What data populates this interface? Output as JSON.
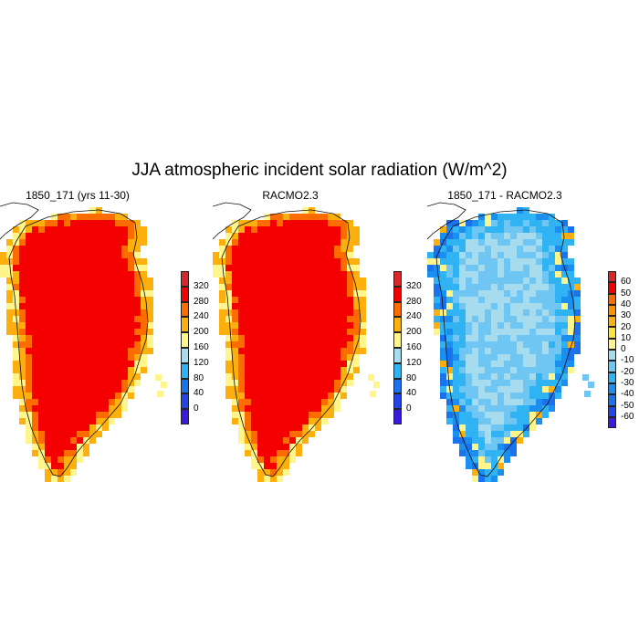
{
  "title": "JJA atmospheric incident solar radiation (W/m^2)",
  "panels": [
    {
      "title": "1850_171 (yrs 11-30)",
      "field": "model",
      "colorbar": {
        "labels": [
          "320",
          "280",
          "240",
          "200",
          "160",
          "120",
          "80",
          "40",
          "0"
        ],
        "colors": [
          "#d8262a",
          "#f40000",
          "#fd6c00",
          "#fdb00d",
          "#fef58c",
          "#a7dcef",
          "#2fb3f2",
          "#1a72ee",
          "#2244e8",
          "#3a1ae0"
        ]
      }
    },
    {
      "title": "RACMO2.3",
      "field": "obs",
      "colorbar": {
        "labels": [
          "320",
          "280",
          "240",
          "200",
          "160",
          "120",
          "80",
          "40",
          "0"
        ],
        "colors": [
          "#d8262a",
          "#f40000",
          "#fd6c00",
          "#fdb00d",
          "#fef58c",
          "#a7dcef",
          "#2fb3f2",
          "#1a72ee",
          "#2244e8",
          "#3a1ae0"
        ]
      }
    },
    {
      "title": "1850_171 - RACMO2.3",
      "field": "diff",
      "colorbar": {
        "labels": [
          "60",
          "50",
          "40",
          "30",
          "20",
          "10",
          "0",
          "-10",
          "-20",
          "-30",
          "-40",
          "-50",
          "-60"
        ],
        "colors": [
          "#d8262a",
          "#f40000",
          "#fd6c00",
          "#fd9200",
          "#fdb00d",
          "#fde23c",
          "#fef58c",
          "#a7dcef",
          "#6fc6f2",
          "#2fb3f2",
          "#1a8ff0",
          "#1a72ee",
          "#2244e8",
          "#3a1ae0"
        ]
      }
    }
  ]
}
